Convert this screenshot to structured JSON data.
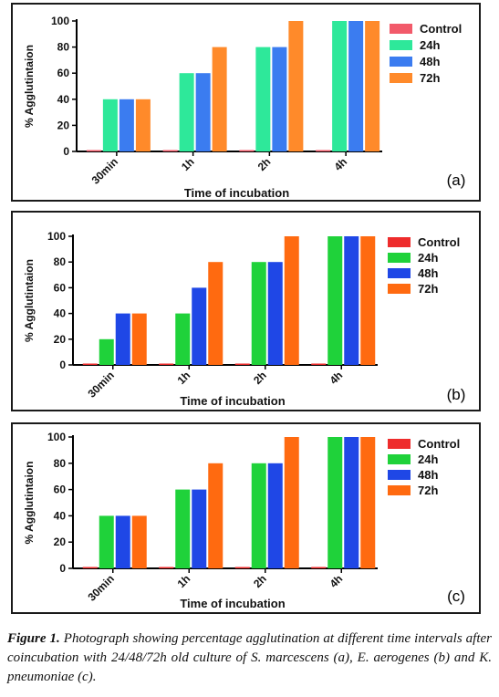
{
  "chart_data": [
    {
      "type": "bar",
      "panel_label": "(a)",
      "categories": [
        "30min",
        "1h",
        "2h",
        "4h"
      ],
      "series": [
        {
          "name": "Control",
          "color": "#f25a6a",
          "values": [
            0,
            0,
            0,
            0
          ]
        },
        {
          "name": "24h",
          "color": "#2ee89a",
          "values": [
            40,
            60,
            80,
            100
          ]
        },
        {
          "name": "48h",
          "color": "#3b7cf0",
          "values": [
            40,
            60,
            80,
            100
          ]
        },
        {
          "name": "72h",
          "color": "#ff8a2a",
          "values": [
            40,
            80,
            100,
            100
          ]
        }
      ],
      "xlabel": "Time of incubation",
      "ylabel": "% Agglutintaion",
      "ylim": [
        0,
        100
      ],
      "yticks": [
        0,
        20,
        40,
        60,
        80,
        100
      ],
      "legend": "top-right",
      "grid": false
    },
    {
      "type": "bar",
      "panel_label": "(b)",
      "categories": [
        "30min",
        "1h",
        "2h",
        "4h"
      ],
      "series": [
        {
          "name": "Control",
          "color": "#ee2c2c",
          "values": [
            0,
            0,
            0,
            0
          ]
        },
        {
          "name": "24h",
          "color": "#1fd23a",
          "values": [
            20,
            40,
            80,
            100
          ]
        },
        {
          "name": "48h",
          "color": "#1f47e6",
          "values": [
            40,
            60,
            80,
            100
          ]
        },
        {
          "name": "72h",
          "color": "#ff6a10",
          "values": [
            40,
            80,
            100,
            100
          ]
        }
      ],
      "xlabel": "Time of incubation",
      "ylabel": "% Agglutintaion",
      "ylim": [
        0,
        100
      ],
      "yticks": [
        0,
        20,
        40,
        60,
        80,
        100
      ],
      "legend": "top-right",
      "grid": false
    },
    {
      "type": "bar",
      "panel_label": "(c)",
      "categories": [
        "30min",
        "1h",
        "2h",
        "4h"
      ],
      "series": [
        {
          "name": "Control",
          "color": "#ee2c2c",
          "values": [
            0,
            0,
            0,
            0
          ]
        },
        {
          "name": "24h",
          "color": "#1fd23a",
          "values": [
            40,
            60,
            80,
            100
          ]
        },
        {
          "name": "48h",
          "color": "#1f47e6",
          "values": [
            40,
            60,
            80,
            100
          ]
        },
        {
          "name": "72h",
          "color": "#ff6a10",
          "values": [
            40,
            80,
            100,
            100
          ]
        }
      ],
      "xlabel": "Time of incubation",
      "ylabel": "% Agglutintaion",
      "ylim": [
        0,
        100
      ],
      "yticks": [
        0,
        20,
        40,
        60,
        80,
        100
      ],
      "legend": "top-right",
      "grid": false
    }
  ],
  "caption": {
    "label": "Figure 1.",
    "text": "Photograph showing percentage agglutination at different time intervals after coincubation with 24/48/72h old culture of S. marcescens (a), E. aerogenes (b) and K. pneumoniae (c)."
  }
}
